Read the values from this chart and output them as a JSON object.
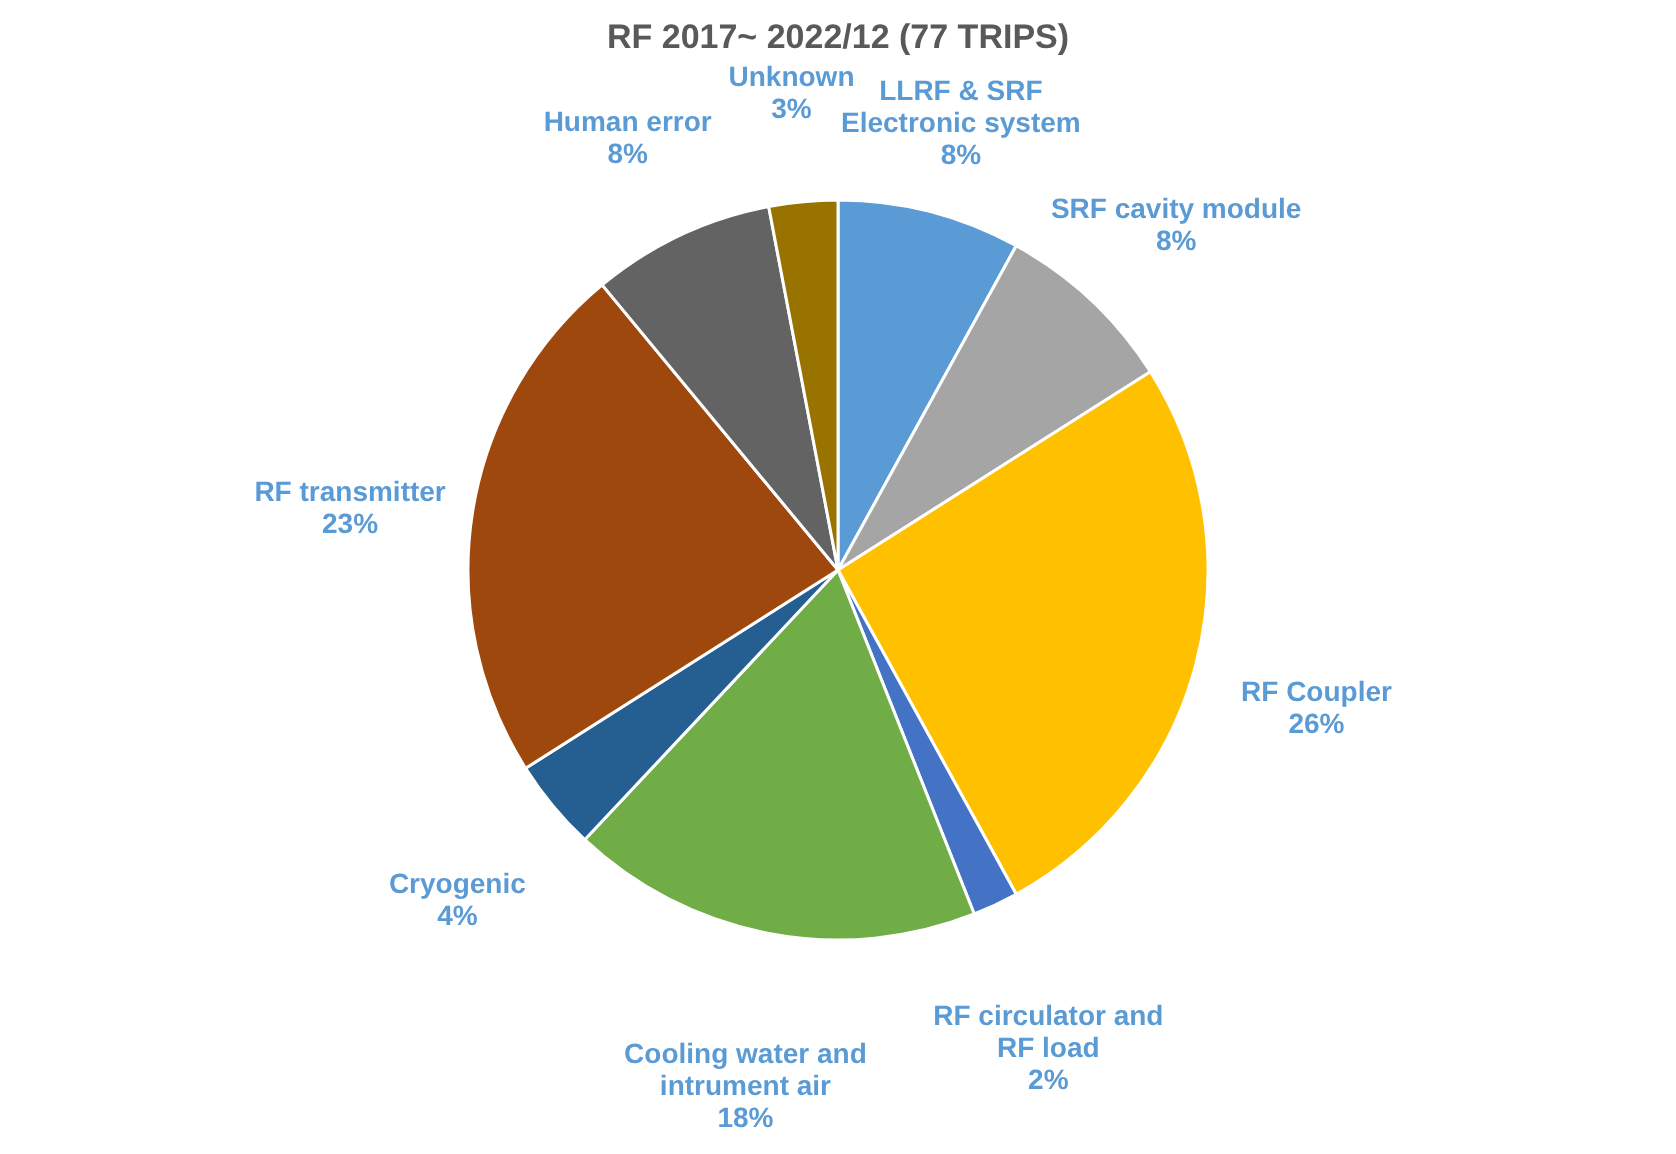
{
  "chart_data": {
    "type": "pie",
    "title": "RF 2017~ 2022/12 (77 TRIPS)",
    "categories": [
      "LLRF & SRF Electronic system",
      "SRF cavity module",
      "RF Coupler",
      "RF circulator and RF load",
      "Cooling water and intrument air",
      "Cryogenic",
      "RF transmitter",
      "Human error",
      "Unknown"
    ],
    "values": [
      8,
      8,
      26,
      2,
      18,
      4,
      23,
      8,
      3
    ],
    "value_labels": [
      "8%",
      "8%",
      "26%",
      "2%",
      "18%",
      "4%",
      "23%",
      "8%",
      "3%"
    ],
    "colors": [
      "#5b9bd5",
      "#a5a5a5",
      "#ffc000",
      "#4472c4",
      "#70ad47",
      "#255e91",
      "#9e480e",
      "#636363",
      "#997300"
    ],
    "legend": false
  }
}
